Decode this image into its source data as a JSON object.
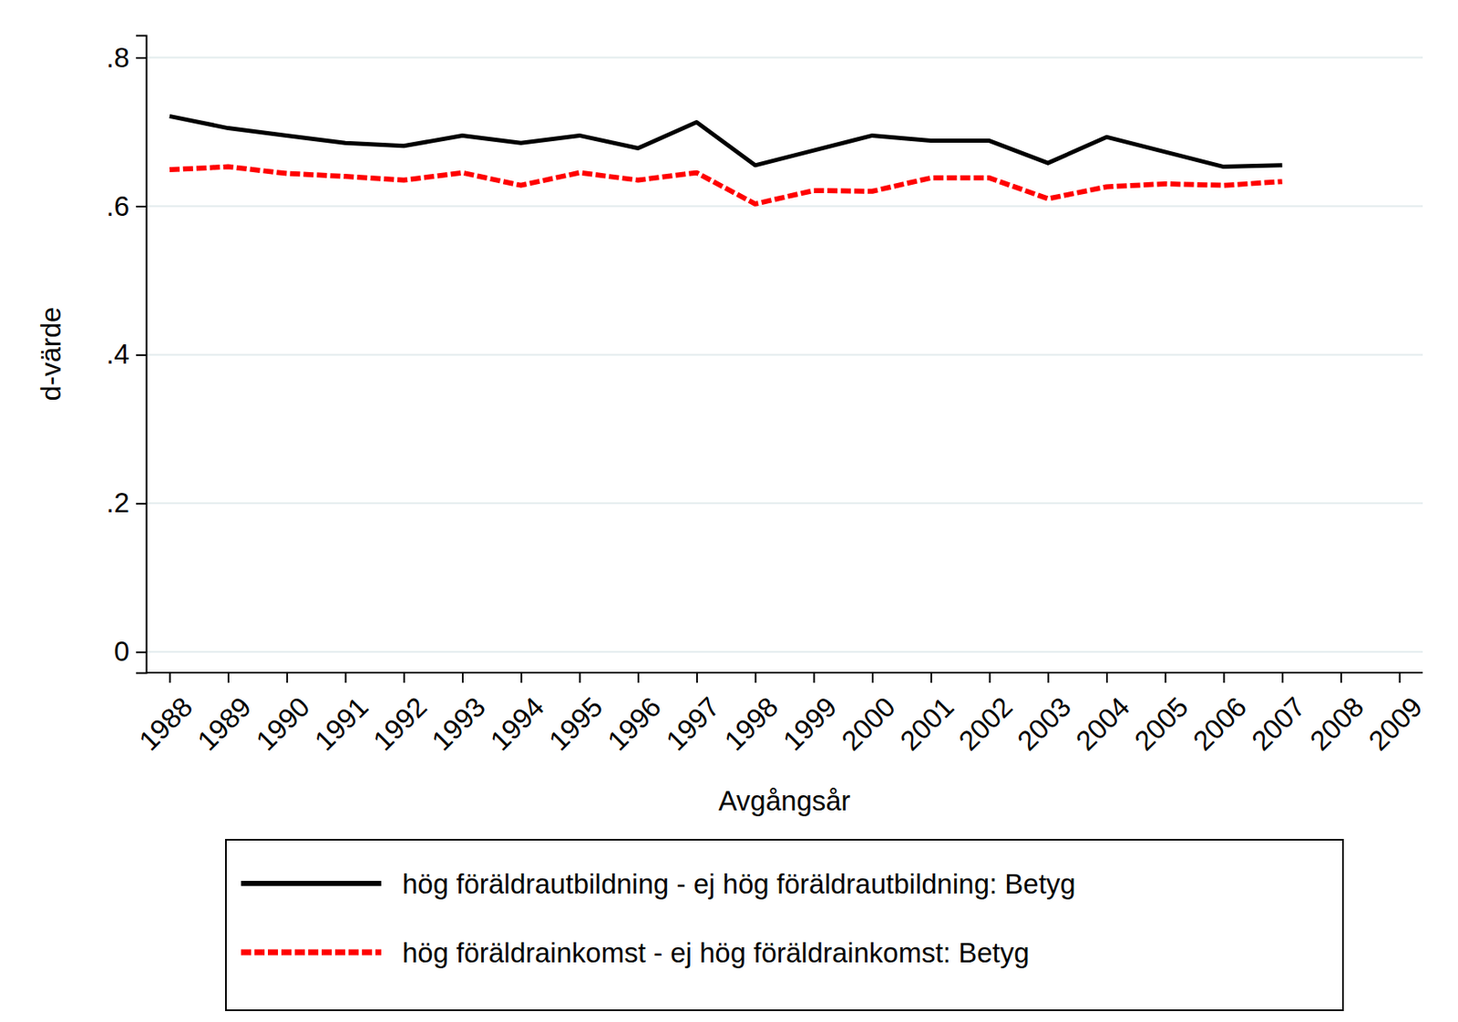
{
  "chart_data": {
    "type": "line",
    "x_label": "Avgångsår",
    "y_label": "d-värde",
    "categories": [
      "1988",
      "1989",
      "1990",
      "1991",
      "1992",
      "1993",
      "1994",
      "1995",
      "1996",
      "1997",
      "1998",
      "1999",
      "2000",
      "2001",
      "2002",
      "2003",
      "2004",
      "2005",
      "2006",
      "2007",
      "2008",
      "2009"
    ],
    "series": [
      {
        "name": "hög föräldrautbildning - ej hög föräldrautbildning: Betyg",
        "color": "#000000",
        "line_style": "solid",
        "values": [
          0.721,
          0.705,
          0.695,
          0.685,
          0.681,
          0.695,
          0.685,
          0.695,
          0.678,
          0.713,
          0.655,
          0.675,
          0.695,
          0.688,
          0.688,
          0.658,
          0.693,
          0.673,
          0.653,
          0.655,
          null,
          null
        ]
      },
      {
        "name": "hög föräldrainkomst - ej hög föräldrainkomst: Betyg",
        "color": "#ff0000",
        "line_style": "dashed",
        "values": [
          0.649,
          0.653,
          0.644,
          0.64,
          0.635,
          0.645,
          0.628,
          0.645,
          0.635,
          0.645,
          0.603,
          0.621,
          0.62,
          0.638,
          0.638,
          0.61,
          0.626,
          0.63,
          0.628,
          0.633,
          null,
          null
        ]
      }
    ],
    "ylim": [
      -0.028,
      0.83
    ],
    "yticks": [
      0,
      {
        "value": 0.2,
        "label": ".2"
      },
      {
        "value": 0.4,
        "label": ".4"
      },
      {
        "value": 0.6,
        "label": ".6"
      },
      {
        "value": 0.8,
        "label": ".8"
      }
    ],
    "grid": true,
    "legend": "bottom"
  }
}
